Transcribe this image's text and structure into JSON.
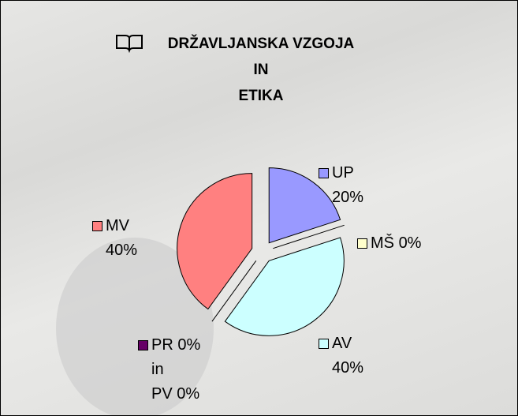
{
  "chart_data": {
    "type": "pie",
    "title": "DRŽAVLJANSKA VZGOJA\nIN\nETIKA",
    "categories": [
      "UP",
      "MŠ",
      "AV",
      "PR 0%\nin\nPV",
      "MV"
    ],
    "values": [
      20,
      0,
      40,
      0,
      40
    ],
    "value_labels": [
      "20%",
      "0%",
      "40%",
      "0%",
      "40%"
    ],
    "colors": [
      "#9999ff",
      "#ffffcc",
      "#ccffff",
      "#660066",
      "#ff8080"
    ]
  }
}
